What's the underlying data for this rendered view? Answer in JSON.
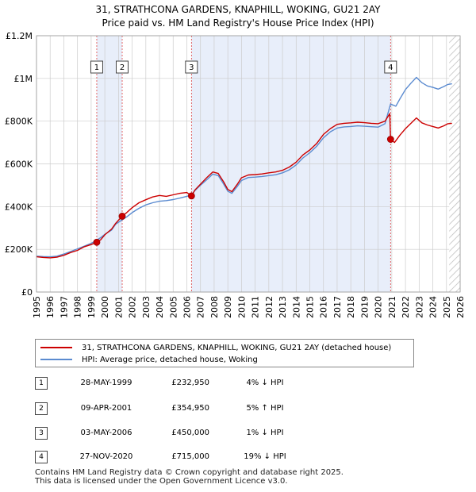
{
  "title_line1": "31, STRATHCONA GARDENS, KNAPHILL, WOKING, GU21 2AY",
  "title_line2": "Price paid vs. HM Land Registry's House Price Index (HPI)",
  "chart_data": {
    "type": "line",
    "title": "31, STRATHCONA GARDENS, KNAPHILL, WOKING, GU21 2AY — Price paid vs. HM Land Registry's House Price Index (HPI)",
    "xlabel": "",
    "ylabel": "",
    "xlim": [
      1995,
      2026
    ],
    "ylim": [
      0,
      1200000
    ],
    "x_ticks": [
      "1995",
      "1996",
      "1997",
      "1998",
      "1999",
      "2000",
      "2001",
      "2002",
      "2003",
      "2004",
      "2005",
      "2006",
      "2007",
      "2008",
      "2009",
      "2010",
      "2011",
      "2012",
      "2013",
      "2014",
      "2015",
      "2016",
      "2017",
      "2018",
      "2019",
      "2020",
      "2021",
      "2022",
      "2023",
      "2024",
      "2025",
      "2026"
    ],
    "y_ticks": [
      {
        "value": 0,
        "label": "£0"
      },
      {
        "value": 200000,
        "label": "£200K"
      },
      {
        "value": 400000,
        "label": "£400K"
      },
      {
        "value": 600000,
        "label": "£600K"
      },
      {
        "value": 800000,
        "label": "£800K"
      },
      {
        "value": 1000000,
        "label": "£1M"
      },
      {
        "value": 1200000,
        "label": "£1.2M"
      }
    ],
    "grid": true,
    "series": [
      {
        "name": "31, STRATHCONA GARDENS, KNAPHILL, WOKING, GU21 2AY (detached house)",
        "color": "#cc0000",
        "points": [
          [
            1995.0,
            165000
          ],
          [
            1995.5,
            162000
          ],
          [
            1996.0,
            160000
          ],
          [
            1996.5,
            163000
          ],
          [
            1997.0,
            172000
          ],
          [
            1997.5,
            185000
          ],
          [
            1998.0,
            195000
          ],
          [
            1998.5,
            212000
          ],
          [
            1999.0,
            222000
          ],
          [
            1999.41,
            232950
          ],
          [
            1999.7,
            245000
          ],
          [
            2000.0,
            268000
          ],
          [
            2000.5,
            295000
          ],
          [
            2000.8,
            322000
          ],
          [
            2001.27,
            354950
          ],
          [
            2001.6,
            372000
          ],
          [
            2002.0,
            395000
          ],
          [
            2002.5,
            418000
          ],
          [
            2003.0,
            432000
          ],
          [
            2003.5,
            445000
          ],
          [
            2004.0,
            452000
          ],
          [
            2004.5,
            448000
          ],
          [
            2005.0,
            455000
          ],
          [
            2005.5,
            462000
          ],
          [
            2006.0,
            466000
          ],
          [
            2006.34,
            450000
          ],
          [
            2006.6,
            478000
          ],
          [
            2007.0,
            505000
          ],
          [
            2007.5,
            538000
          ],
          [
            2007.9,
            562000
          ],
          [
            2008.3,
            555000
          ],
          [
            2008.7,
            515000
          ],
          [
            2009.0,
            480000
          ],
          [
            2009.3,
            470000
          ],
          [
            2009.7,
            505000
          ],
          [
            2010.0,
            535000
          ],
          [
            2010.5,
            548000
          ],
          [
            2011.0,
            550000
          ],
          [
            2011.5,
            553000
          ],
          [
            2012.0,
            558000
          ],
          [
            2012.5,
            562000
          ],
          [
            2013.0,
            570000
          ],
          [
            2013.5,
            585000
          ],
          [
            2014.0,
            608000
          ],
          [
            2014.5,
            642000
          ],
          [
            2015.0,
            665000
          ],
          [
            2015.5,
            695000
          ],
          [
            2016.0,
            738000
          ],
          [
            2016.5,
            765000
          ],
          [
            2017.0,
            785000
          ],
          [
            2017.5,
            790000
          ],
          [
            2018.0,
            792000
          ],
          [
            2018.5,
            795000
          ],
          [
            2019.0,
            793000
          ],
          [
            2019.5,
            790000
          ],
          [
            2020.0,
            788000
          ],
          [
            2020.5,
            800000
          ],
          [
            2020.85,
            835000
          ],
          [
            2020.91,
            715000
          ],
          [
            2021.2,
            700000
          ],
          [
            2021.6,
            735000
          ],
          [
            2022.0,
            765000
          ],
          [
            2022.4,
            790000
          ],
          [
            2022.8,
            815000
          ],
          [
            2023.2,
            792000
          ],
          [
            2023.6,
            782000
          ],
          [
            2024.0,
            775000
          ],
          [
            2024.4,
            768000
          ],
          [
            2024.8,
            778000
          ],
          [
            2025.1,
            788000
          ],
          [
            2025.4,
            790000
          ]
        ]
      },
      {
        "name": "HPI: Average price, detached house, Woking",
        "color": "#5b8bd0",
        "points": [
          [
            1995.0,
            168000
          ],
          [
            1995.5,
            166000
          ],
          [
            1996.0,
            165000
          ],
          [
            1996.5,
            168000
          ],
          [
            1997.0,
            178000
          ],
          [
            1997.5,
            190000
          ],
          [
            1998.0,
            202000
          ],
          [
            1998.5,
            215000
          ],
          [
            1999.0,
            228000
          ],
          [
            1999.41,
            243000
          ],
          [
            1999.7,
            255000
          ],
          [
            2000.0,
            270000
          ],
          [
            2000.5,
            290000
          ],
          [
            2000.8,
            318000
          ],
          [
            2001.27,
            338000
          ],
          [
            2001.6,
            352000
          ],
          [
            2002.0,
            372000
          ],
          [
            2002.5,
            392000
          ],
          [
            2003.0,
            408000
          ],
          [
            2003.5,
            418000
          ],
          [
            2004.0,
            425000
          ],
          [
            2004.5,
            428000
          ],
          [
            2005.0,
            433000
          ],
          [
            2005.5,
            440000
          ],
          [
            2006.0,
            448000
          ],
          [
            2006.34,
            455000
          ],
          [
            2006.6,
            475000
          ],
          [
            2007.0,
            500000
          ],
          [
            2007.5,
            528000
          ],
          [
            2007.9,
            552000
          ],
          [
            2008.3,
            545000
          ],
          [
            2008.7,
            505000
          ],
          [
            2009.0,
            472000
          ],
          [
            2009.3,
            462000
          ],
          [
            2009.7,
            495000
          ],
          [
            2010.0,
            522000
          ],
          [
            2010.5,
            536000
          ],
          [
            2011.0,
            538000
          ],
          [
            2011.5,
            541000
          ],
          [
            2012.0,
            545000
          ],
          [
            2012.5,
            549000
          ],
          [
            2013.0,
            558000
          ],
          [
            2013.5,
            572000
          ],
          [
            2014.0,
            595000
          ],
          [
            2014.5,
            628000
          ],
          [
            2015.0,
            652000
          ],
          [
            2015.5,
            682000
          ],
          [
            2016.0,
            722000
          ],
          [
            2016.5,
            750000
          ],
          [
            2017.0,
            768000
          ],
          [
            2017.5,
            773000
          ],
          [
            2018.0,
            775000
          ],
          [
            2018.5,
            778000
          ],
          [
            2019.0,
            776000
          ],
          [
            2019.5,
            774000
          ],
          [
            2020.0,
            772000
          ],
          [
            2020.5,
            788000
          ],
          [
            2020.91,
            880000
          ],
          [
            2021.3,
            870000
          ],
          [
            2021.6,
            905000
          ],
          [
            2022.0,
            948000
          ],
          [
            2022.4,
            978000
          ],
          [
            2022.8,
            1005000
          ],
          [
            2023.2,
            980000
          ],
          [
            2023.6,
            965000
          ],
          [
            2024.0,
            958000
          ],
          [
            2024.4,
            950000
          ],
          [
            2024.8,
            962000
          ],
          [
            2025.1,
            972000
          ],
          [
            2025.4,
            975000
          ]
        ]
      }
    ],
    "transactions": [
      {
        "num": "1",
        "x": 1999.41,
        "price": 232950
      },
      {
        "num": "2",
        "x": 2001.27,
        "price": 354950
      },
      {
        "num": "3",
        "x": 2006.34,
        "price": 450000
      },
      {
        "num": "4",
        "x": 2020.91,
        "price": 715000
      }
    ],
    "shaded_ranges": [
      [
        1999.41,
        2001.27
      ],
      [
        2006.34,
        2020.91
      ]
    ],
    "future_hatch_from": 2025.2,
    "legend_position": "below"
  },
  "legend": {
    "property": "31, STRATHCONA GARDENS, KNAPHILL, WOKING, GU21 2AY (detached house)",
    "hpi": "HPI: Average price, detached house, Woking"
  },
  "transactions_table": [
    {
      "num": "1",
      "date": "28-MAY-1999",
      "price": "£232,950",
      "hpi": "4% ↓ HPI"
    },
    {
      "num": "2",
      "date": "09-APR-2001",
      "price": "£354,950",
      "hpi": "5% ↑ HPI"
    },
    {
      "num": "3",
      "date": "03-MAY-2006",
      "price": "£450,000",
      "hpi": "1% ↓ HPI"
    },
    {
      "num": "4",
      "date": "27-NOV-2020",
      "price": "£715,000",
      "hpi": "19% ↓ HPI"
    }
  ],
  "footer": {
    "line1": "Contains HM Land Registry data © Crown copyright and database right 2025.",
    "line2": "This data is licensed under the Open Government Licence v3.0."
  },
  "colors": {
    "property_line": "#cc0000",
    "hpi_line": "#5b8bd0",
    "shade": "#e8eefa",
    "grid": "#cccccc",
    "marker_line": "#dd4444"
  }
}
